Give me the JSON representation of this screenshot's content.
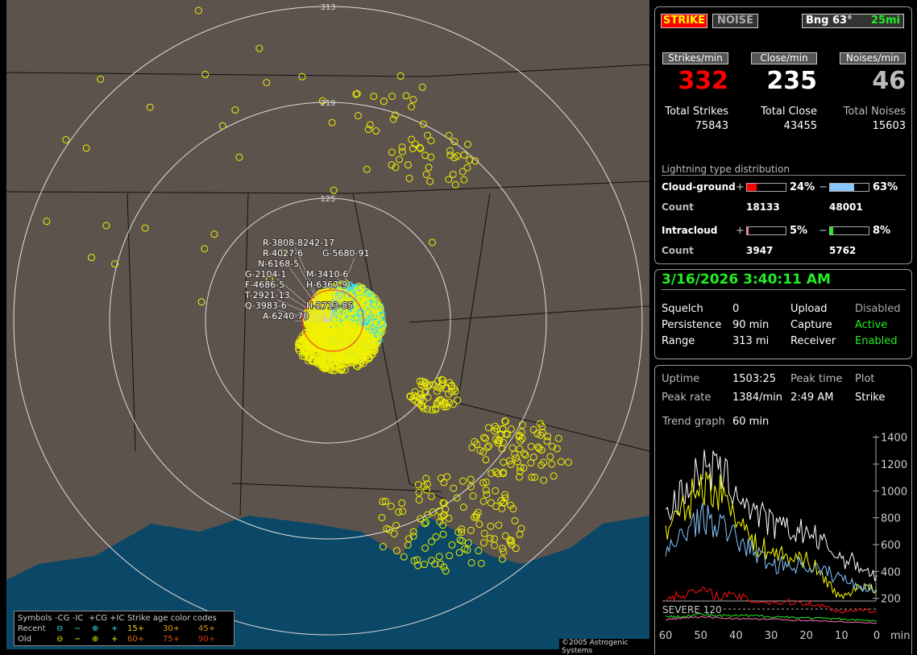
{
  "map": {
    "range_labels": [
      "125",
      "219",
      "313"
    ],
    "strike_labels": [
      "R-3808-8242-17",
      "R-4027-6",
      "G-5680-91",
      "N-6168-5",
      "M-3410-6",
      "G-2104-1",
      "F-4686-5",
      "T-2921-13",
      "Q-3983-6",
      "H-6367-9",
      "H-2713-85",
      "A-6240-70"
    ],
    "copyright": "©2005 Astrogenic Systems",
    "legend": {
      "symbols_label": "Symbols",
      "cols": [
        "-CG",
        "-IC",
        "+CG",
        "+IC"
      ],
      "recent_label": "Recent",
      "old_label": "Old",
      "age_title": "Strike age color codes",
      "age_recent": [
        "15+",
        "30+",
        "45+"
      ],
      "age_old": [
        "60+",
        "75+",
        "90+"
      ],
      "age_colors": [
        "#e8d020",
        "#e0a010",
        "#d09010",
        "#d07010",
        "#d85010",
        "#e03010"
      ]
    },
    "colors": {
      "land": "#5c534d",
      "ocean": "#0b4766",
      "recent": "#33e0f0",
      "old": "#f0f000",
      "close_ring": "#ff2020"
    }
  },
  "status": {
    "strike_button": "STRIKE",
    "noise_button": "NOISE",
    "bearing": "Bng 63°",
    "distance": "25mi",
    "headers": [
      "Strikes/min",
      "Close/min",
      "Noises/min"
    ],
    "rates": [
      "332",
      "235",
      "46"
    ],
    "total_labels": [
      "Total Strikes",
      "Total Close",
      "Total Noises"
    ],
    "totals": [
      "75843",
      "43455",
      "15603"
    ],
    "dist_title": "Lightning type distribution",
    "cg_label": "Cloud-ground",
    "ic_label": "Intracloud",
    "count_label": "Count",
    "plus": "+",
    "minus": "−",
    "cg_pos_pct": "24%",
    "cg_neg_pct": "63%",
    "ic_pos_pct": "5%",
    "ic_neg_pct": "8%",
    "cg_pos_frac": 0.24,
    "cg_neg_frac": 0.63,
    "ic_pos_frac": 0.05,
    "ic_neg_frac": 0.08,
    "cg_pos_count": "18133",
    "cg_neg_count": "48001",
    "ic_pos_count": "3947",
    "ic_neg_count": "5762"
  },
  "info": {
    "datetime": "3/16/2026 3:40:11 AM",
    "rows": [
      [
        "Squelch",
        "0",
        "Upload",
        "Disabled"
      ],
      [
        "Persistence",
        "90 min",
        "Capture",
        "Active"
      ],
      [
        "Range",
        "313 mi",
        "Receiver",
        "Enabled"
      ]
    ]
  },
  "stats": {
    "uptime_label": "Uptime",
    "uptime": "1503:25",
    "peak_time_label": "Peak time",
    "plot_label": "Plot",
    "peak_rate_label": "Peak rate",
    "peak_rate": "1384/min",
    "peak_time": "2:49 AM",
    "plot": "Strike",
    "trend_label": "Trend graph",
    "trend_value": "60 min"
  },
  "trend": {
    "y_ticks": [
      "1400",
      "1200",
      "1000",
      "800",
      "600",
      "400",
      "200"
    ],
    "x_ticks": [
      "60",
      "50",
      "40",
      "30",
      "20",
      "10",
      "0"
    ],
    "x_unit": "min",
    "severe_label": "SEVERE 120",
    "severe_value": 120,
    "minutes": [
      60,
      55,
      50,
      45,
      40,
      35,
      30,
      25,
      20,
      15,
      10,
      5,
      0
    ],
    "series": [
      {
        "name": "total",
        "color": "#ffffff",
        "values": [
          800,
          1000,
          1150,
          1150,
          1000,
          850,
          750,
          700,
          700,
          600,
          500,
          450,
          350
        ]
      },
      {
        "name": "close",
        "color": "#ffff00",
        "values": [
          700,
          850,
          1050,
          1000,
          850,
          600,
          550,
          500,
          500,
          350,
          200,
          300,
          250
        ]
      },
      {
        "name": "neg-cg",
        "color": "#88c8ff",
        "values": [
          500,
          700,
          800,
          750,
          650,
          550,
          450,
          450,
          450,
          400,
          350,
          300,
          250
        ]
      },
      {
        "name": "pos-cg",
        "color": "#ff1010",
        "values": [
          200,
          230,
          260,
          220,
          220,
          180,
          170,
          170,
          170,
          140,
          100,
          120,
          100
        ]
      },
      {
        "name": "neg-ic",
        "color": "#22ee22",
        "values": [
          60,
          70,
          80,
          70,
          70,
          70,
          65,
          60,
          55,
          50,
          45,
          40,
          30
        ]
      },
      {
        "name": "pos-ic",
        "color": "#ff70b0",
        "values": [
          40,
          55,
          60,
          55,
          50,
          45,
          45,
          40,
          35,
          30,
          25,
          20,
          15
        ]
      }
    ]
  }
}
